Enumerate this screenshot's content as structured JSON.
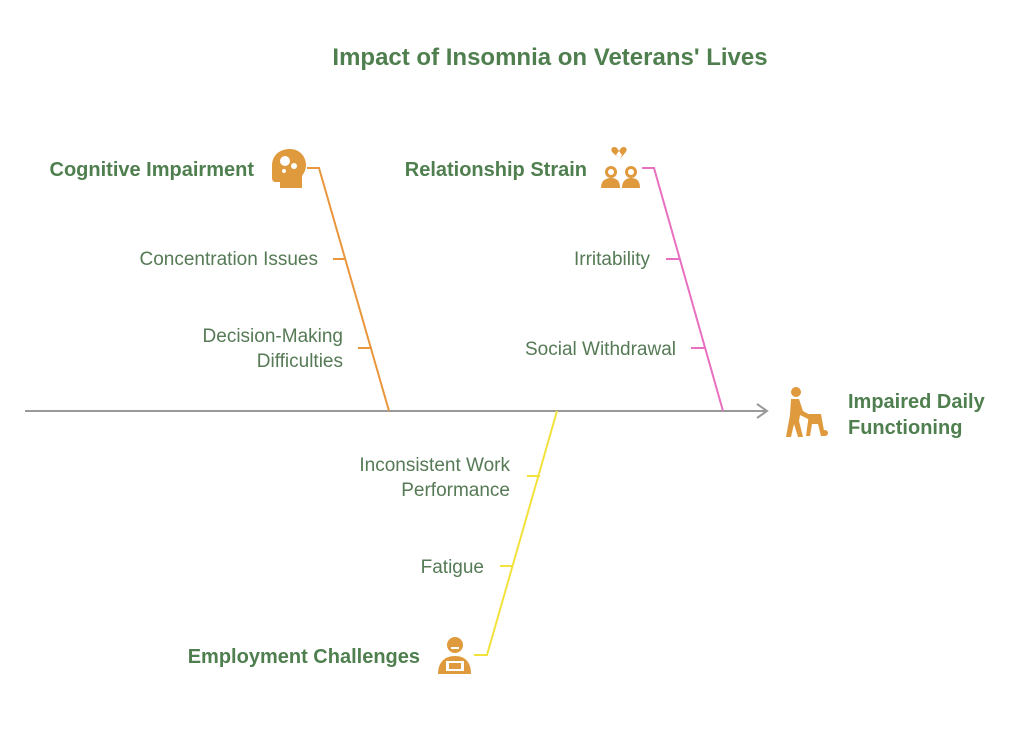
{
  "title": "Impact of Insomnia on Veterans' Lives",
  "effect": {
    "line1": "Impaired Daily",
    "line2": "Functioning",
    "icon": "person-with-walker-icon"
  },
  "categories": [
    {
      "label": "Cognitive Impairment",
      "color": "#e9963c",
      "icon": "brain-head-icon",
      "causes": [
        {
          "lines": [
            "Concentration Issues"
          ]
        },
        {
          "lines": [
            "Decision-Making",
            "Difficulties"
          ]
        }
      ]
    },
    {
      "label": "Relationship Strain",
      "color": "#e96fc0",
      "icon": "broken-heart-couple-icon",
      "causes": [
        {
          "lines": [
            "Irritability"
          ]
        },
        {
          "lines": [
            "Social Withdrawal"
          ]
        }
      ]
    },
    {
      "label": "Employment Challenges",
      "color": "#f2e23c",
      "icon": "worker-icon",
      "causes": [
        {
          "lines": [
            "Inconsistent Work",
            "Performance"
          ]
        },
        {
          "lines": [
            "Fatigue"
          ]
        }
      ]
    }
  ],
  "colors": {
    "spine": "#999999",
    "icon": "#e09a3e",
    "text": "#4f7f4f"
  }
}
